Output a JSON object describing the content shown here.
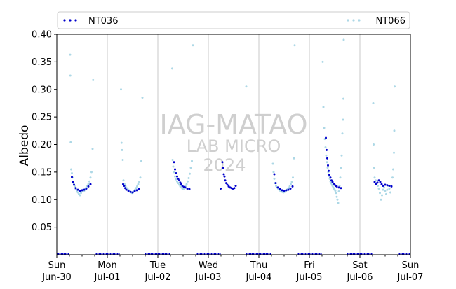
{
  "chart_data": {
    "type": "scatter",
    "title": "",
    "xlabel": "",
    "ylabel": "Albedo",
    "xlim": [
      "2024-06-30",
      "2024-07-07"
    ],
    "ylim": [
      0.0,
      0.4
    ],
    "yticks": [
      0.05,
      0.1,
      0.15,
      0.2,
      0.25,
      0.3,
      0.35,
      0.4
    ],
    "ytick_labels": [
      "0.05",
      "0.10",
      "0.15",
      "0.20",
      "0.25",
      "0.30",
      "0.35",
      "0.40"
    ],
    "xticks": [
      "2024-06-30",
      "2024-07-01",
      "2024-07-02",
      "2024-07-03",
      "2024-07-04",
      "2024-07-05",
      "2024-07-06",
      "2024-07-07"
    ],
    "xtick_labels": [
      [
        "Sun",
        "Jun-30"
      ],
      [
        "Mon",
        "Jul-01"
      ],
      [
        "Tue",
        "Jul-02"
      ],
      [
        "Wed",
        "Jul-03"
      ],
      [
        "Thu",
        "Jul-04"
      ],
      [
        "Fri",
        "Jul-05"
      ],
      [
        "Sat",
        "Jul-06"
      ],
      [
        "Sun",
        "Jul-07"
      ]
    ],
    "grid": "vertical lines at day boundaries",
    "legend_position": "top",
    "watermark": [
      "IAG-MATAO",
      "LAB MICRO",
      "2024"
    ],
    "series": [
      {
        "name": "NT036",
        "color": "#0000cc",
        "points": [
          [
            "2024-06-30T07:10",
            0.141
          ],
          [
            "2024-06-30T07:40",
            0.132
          ],
          [
            "2024-06-30T08:10",
            0.127
          ],
          [
            "2024-06-30T09:00",
            0.121
          ],
          [
            "2024-06-30T10:00",
            0.118
          ],
          [
            "2024-06-30T11:00",
            0.116
          ],
          [
            "2024-06-30T12:00",
            0.117
          ],
          [
            "2024-06-30T13:00",
            0.118
          ],
          [
            "2024-06-30T14:00",
            0.12
          ],
          [
            "2024-06-30T15:00",
            0.124
          ],
          [
            "2024-06-30T16:00",
            0.128
          ],
          [
            "2024-07-01T07:30",
            0.128
          ],
          [
            "2024-07-01T08:00",
            0.125
          ],
          [
            "2024-07-01T08:30",
            0.121
          ],
          [
            "2024-07-01T09:00",
            0.118
          ],
          [
            "2024-07-01T10:00",
            0.116
          ],
          [
            "2024-07-01T11:00",
            0.114
          ],
          [
            "2024-07-01T12:00",
            0.113
          ],
          [
            "2024-07-01T13:00",
            0.115
          ],
          [
            "2024-07-01T14:00",
            0.117
          ],
          [
            "2024-07-01T15:00",
            0.119
          ],
          [
            "2024-07-02T07:40",
            0.168
          ],
          [
            "2024-07-02T08:10",
            0.155
          ],
          [
            "2024-07-02T08:40",
            0.148
          ],
          [
            "2024-07-02T09:10",
            0.142
          ],
          [
            "2024-07-02T09:40",
            0.138
          ],
          [
            "2024-07-02T10:10",
            0.135
          ],
          [
            "2024-07-02T10:40",
            0.131
          ],
          [
            "2024-07-02T11:10",
            0.128
          ],
          [
            "2024-07-02T11:40",
            0.125
          ],
          [
            "2024-07-02T12:20",
            0.123
          ],
          [
            "2024-07-02T13:00",
            0.122
          ],
          [
            "2024-07-02T14:00",
            0.12
          ],
          [
            "2024-07-02T15:00",
            0.119
          ],
          [
            "2024-07-03T05:50",
            0.12
          ],
          [
            "2024-07-03T06:40",
            0.168
          ],
          [
            "2024-07-03T07:00",
            0.158
          ],
          [
            "2024-07-03T07:20",
            0.146
          ],
          [
            "2024-07-03T07:40",
            0.142
          ],
          [
            "2024-07-03T08:00",
            0.135
          ],
          [
            "2024-07-03T08:30",
            0.13
          ],
          [
            "2024-07-03T09:00",
            0.127
          ],
          [
            "2024-07-03T09:40",
            0.124
          ],
          [
            "2024-07-03T10:20",
            0.122
          ],
          [
            "2024-07-03T11:00",
            0.121
          ],
          [
            "2024-07-03T11:40",
            0.12
          ],
          [
            "2024-07-03T12:20",
            0.121
          ],
          [
            "2024-07-03T13:00",
            0.125
          ],
          [
            "2024-07-04T07:20",
            0.146
          ],
          [
            "2024-07-04T08:00",
            0.13
          ],
          [
            "2024-07-04T09:00",
            0.122
          ],
          [
            "2024-07-04T10:00",
            0.119
          ],
          [
            "2024-07-04T11:00",
            0.117
          ],
          [
            "2024-07-04T12:00",
            0.116
          ],
          [
            "2024-07-04T13:00",
            0.117
          ],
          [
            "2024-07-04T14:00",
            0.118
          ],
          [
            "2024-07-04T15:00",
            0.12
          ],
          [
            "2024-07-04T16:00",
            0.124
          ],
          [
            "2024-07-05T07:50",
            0.212
          ],
          [
            "2024-07-05T08:10",
            0.19
          ],
          [
            "2024-07-05T08:30",
            0.175
          ],
          [
            "2024-07-05T08:50",
            0.162
          ],
          [
            "2024-07-05T09:10",
            0.152
          ],
          [
            "2024-07-05T09:30",
            0.145
          ],
          [
            "2024-07-05T10:00",
            0.14
          ],
          [
            "2024-07-05T10:30",
            0.135
          ],
          [
            "2024-07-05T11:00",
            0.132
          ],
          [
            "2024-07-05T11:30",
            0.129
          ],
          [
            "2024-07-05T12:00",
            0.127
          ],
          [
            "2024-07-05T12:30",
            0.125
          ],
          [
            "2024-07-05T13:00",
            0.124
          ],
          [
            "2024-07-05T14:00",
            0.122
          ],
          [
            "2024-07-05T15:00",
            0.121
          ],
          [
            "2024-07-06T07:00",
            0.132
          ],
          [
            "2024-07-06T07:40",
            0.128
          ],
          [
            "2024-07-06T08:20",
            0.131
          ],
          [
            "2024-07-06T09:00",
            0.135
          ],
          [
            "2024-07-06T09:40",
            0.132
          ],
          [
            "2024-07-06T10:20",
            0.128
          ],
          [
            "2024-07-06T11:00",
            0.125
          ],
          [
            "2024-07-06T12:00",
            0.127
          ],
          [
            "2024-07-06T13:00",
            0.126
          ],
          [
            "2024-07-06T14:00",
            0.125
          ],
          [
            "2024-07-06T15:00",
            0.124
          ]
        ],
        "night_baseline_value": 0.0
      },
      {
        "name": "NT066",
        "color": "#add8e6",
        "points": [
          [
            "2024-06-30T06:20",
            0.363
          ],
          [
            "2024-06-30T06:25",
            0.325
          ],
          [
            "2024-06-30T06:35",
            0.204
          ],
          [
            "2024-06-30T06:50",
            0.155
          ],
          [
            "2024-06-30T07:10",
            0.148
          ],
          [
            "2024-06-30T07:30",
            0.14
          ],
          [
            "2024-06-30T08:00",
            0.13
          ],
          [
            "2024-06-30T08:30",
            0.124
          ],
          [
            "2024-06-30T09:00",
            0.119
          ],
          [
            "2024-06-30T09:30",
            0.116
          ],
          [
            "2024-06-30T10:00",
            0.113
          ],
          [
            "2024-06-30T10:30",
            0.11
          ],
          [
            "2024-06-30T11:00",
            0.108
          ],
          [
            "2024-06-30T11:30",
            0.112
          ],
          [
            "2024-06-30T12:00",
            0.115
          ],
          [
            "2024-06-30T12:30",
            0.118
          ],
          [
            "2024-06-30T13:00",
            0.116
          ],
          [
            "2024-06-30T13:30",
            0.12
          ],
          [
            "2024-06-30T14:00",
            0.122
          ],
          [
            "2024-06-30T14:30",
            0.125
          ],
          [
            "2024-06-30T15:00",
            0.128
          ],
          [
            "2024-06-30T15:30",
            0.133
          ],
          [
            "2024-06-30T16:00",
            0.14
          ],
          [
            "2024-06-30T16:30",
            0.15
          ],
          [
            "2024-06-30T17:00",
            0.192
          ],
          [
            "2024-06-30T17:15",
            0.317
          ],
          [
            "2024-07-01T06:30",
            0.3
          ],
          [
            "2024-07-01T06:45",
            0.203
          ],
          [
            "2024-07-01T07:00",
            0.19
          ],
          [
            "2024-07-01T07:20",
            0.172
          ],
          [
            "2024-07-01T07:40",
            0.135
          ],
          [
            "2024-07-01T08:10",
            0.128
          ],
          [
            "2024-07-01T08:40",
            0.124
          ],
          [
            "2024-07-01T09:10",
            0.121
          ],
          [
            "2024-07-01T09:40",
            0.119
          ],
          [
            "2024-07-01T10:10",
            0.117
          ],
          [
            "2024-07-01T10:40",
            0.115
          ],
          [
            "2024-07-01T11:10",
            0.114
          ],
          [
            "2024-07-01T11:40",
            0.112
          ],
          [
            "2024-07-01T12:10",
            0.113
          ],
          [
            "2024-07-01T12:40",
            0.116
          ],
          [
            "2024-07-01T13:10",
            0.118
          ],
          [
            "2024-07-01T13:40",
            0.121
          ],
          [
            "2024-07-01T14:10",
            0.124
          ],
          [
            "2024-07-01T14:40",
            0.128
          ],
          [
            "2024-07-01T15:10",
            0.132
          ],
          [
            "2024-07-01T15:40",
            0.14
          ],
          [
            "2024-07-01T16:10",
            0.17
          ],
          [
            "2024-07-01T16:40",
            0.285
          ],
          [
            "2024-07-02T06:50",
            0.338
          ],
          [
            "2024-07-02T07:00",
            0.172
          ],
          [
            "2024-07-02T07:20",
            0.16
          ],
          [
            "2024-07-02T07:40",
            0.15
          ],
          [
            "2024-07-02T08:10",
            0.142
          ],
          [
            "2024-07-02T08:40",
            0.137
          ],
          [
            "2024-07-02T09:10",
            0.133
          ],
          [
            "2024-07-02T09:40",
            0.13
          ],
          [
            "2024-07-02T10:10",
            0.127
          ],
          [
            "2024-07-02T10:40",
            0.124
          ],
          [
            "2024-07-02T11:10",
            0.122
          ],
          [
            "2024-07-02T11:40",
            0.12
          ],
          [
            "2024-07-02T12:10",
            0.119
          ],
          [
            "2024-07-02T12:40",
            0.121
          ],
          [
            "2024-07-02T13:10",
            0.124
          ],
          [
            "2024-07-02T13:40",
            0.128
          ],
          [
            "2024-07-02T14:10",
            0.133
          ],
          [
            "2024-07-02T14:40",
            0.139
          ],
          [
            "2024-07-02T15:10",
            0.147
          ],
          [
            "2024-07-02T15:40",
            0.158
          ],
          [
            "2024-07-02T16:10",
            0.17
          ],
          [
            "2024-07-02T16:40",
            0.38
          ],
          [
            "2024-07-03T18:00",
            0.305
          ],
          [
            "2024-07-04T06:40",
            0.165
          ],
          [
            "2024-07-04T07:00",
            0.15
          ],
          [
            "2024-07-04T07:20",
            0.138
          ],
          [
            "2024-07-04T07:40",
            0.13
          ],
          [
            "2024-07-04T08:10",
            0.125
          ],
          [
            "2024-07-04T08:40",
            0.122
          ],
          [
            "2024-07-04T09:10",
            0.12
          ],
          [
            "2024-07-04T09:40",
            0.118
          ],
          [
            "2024-07-04T10:10",
            0.116
          ],
          [
            "2024-07-04T10:40",
            0.115
          ],
          [
            "2024-07-04T11:10",
            0.114
          ],
          [
            "2024-07-04T11:40",
            0.113
          ],
          [
            "2024-07-04T12:10",
            0.114
          ],
          [
            "2024-07-04T12:40",
            0.115
          ],
          [
            "2024-07-04T13:10",
            0.117
          ],
          [
            "2024-07-04T13:40",
            0.119
          ],
          [
            "2024-07-04T14:10",
            0.121
          ],
          [
            "2024-07-04T14:40",
            0.124
          ],
          [
            "2024-07-04T15:10",
            0.128
          ],
          [
            "2024-07-04T15:40",
            0.132
          ],
          [
            "2024-07-04T16:10",
            0.14
          ],
          [
            "2024-07-04T16:40",
            0.175
          ],
          [
            "2024-07-04T17:00",
            0.38
          ],
          [
            "2024-07-05T06:20",
            0.35
          ],
          [
            "2024-07-05T06:40",
            0.268
          ],
          [
            "2024-07-05T07:00",
            0.23
          ],
          [
            "2024-07-05T07:20",
            0.21
          ],
          [
            "2024-07-05T07:40",
            0.195
          ],
          [
            "2024-07-05T08:00",
            0.18
          ],
          [
            "2024-07-05T08:20",
            0.168
          ],
          [
            "2024-07-05T08:40",
            0.158
          ],
          [
            "2024-07-05T09:00",
            0.15
          ],
          [
            "2024-07-05T09:20",
            0.143
          ],
          [
            "2024-07-05T09:40",
            0.138
          ],
          [
            "2024-07-05T10:00",
            0.133
          ],
          [
            "2024-07-05T10:20",
            0.13
          ],
          [
            "2024-07-05T10:40",
            0.127
          ],
          [
            "2024-07-05T11:00",
            0.125
          ],
          [
            "2024-07-05T11:20",
            0.122
          ],
          [
            "2024-07-05T11:40",
            0.12
          ],
          [
            "2024-07-05T12:00",
            0.118
          ],
          [
            "2024-07-05T12:20",
            0.116
          ],
          [
            "2024-07-05T12:40",
            0.112
          ],
          [
            "2024-07-05T13:00",
            0.105
          ],
          [
            "2024-07-05T13:20",
            0.1
          ],
          [
            "2024-07-05T13:40",
            0.094
          ],
          [
            "2024-07-05T14:00",
            0.115
          ],
          [
            "2024-07-05T14:20",
            0.125
          ],
          [
            "2024-07-05T14:40",
            0.14
          ],
          [
            "2024-07-05T15:00",
            0.158
          ],
          [
            "2024-07-05T15:20",
            0.18
          ],
          [
            "2024-07-05T15:40",
            0.22
          ],
          [
            "2024-07-05T16:00",
            0.245
          ],
          [
            "2024-07-05T16:10",
            0.283
          ],
          [
            "2024-07-05T16:20",
            0.39
          ],
          [
            "2024-07-06T06:20",
            0.275
          ],
          [
            "2024-07-06T06:30",
            0.2
          ],
          [
            "2024-07-06T06:45",
            0.158
          ],
          [
            "2024-07-06T07:00",
            0.14
          ],
          [
            "2024-07-06T07:30",
            0.135
          ],
          [
            "2024-07-06T08:00",
            0.13
          ],
          [
            "2024-07-06T08:30",
            0.125
          ],
          [
            "2024-07-06T09:00",
            0.12
          ],
          [
            "2024-07-06T09:30",
            0.112
          ],
          [
            "2024-07-06T10:00",
            0.1
          ],
          [
            "2024-07-06T10:30",
            0.108
          ],
          [
            "2024-07-06T11:00",
            0.118
          ],
          [
            "2024-07-06T11:30",
            0.122
          ],
          [
            "2024-07-06T12:00",
            0.116
          ],
          [
            "2024-07-06T12:30",
            0.11
          ],
          [
            "2024-07-06T13:00",
            0.118
          ],
          [
            "2024-07-06T13:30",
            0.125
          ],
          [
            "2024-07-06T14:00",
            0.12
          ],
          [
            "2024-07-06T14:30",
            0.113
          ],
          [
            "2024-07-06T15:00",
            0.125
          ],
          [
            "2024-07-06T15:30",
            0.14
          ],
          [
            "2024-07-06T15:50",
            0.155
          ],
          [
            "2024-07-06T16:10",
            0.185
          ],
          [
            "2024-07-06T16:20",
            0.225
          ],
          [
            "2024-07-06T16:30",
            0.305
          ]
        ],
        "night_baseline_value": 0.0
      }
    ]
  }
}
